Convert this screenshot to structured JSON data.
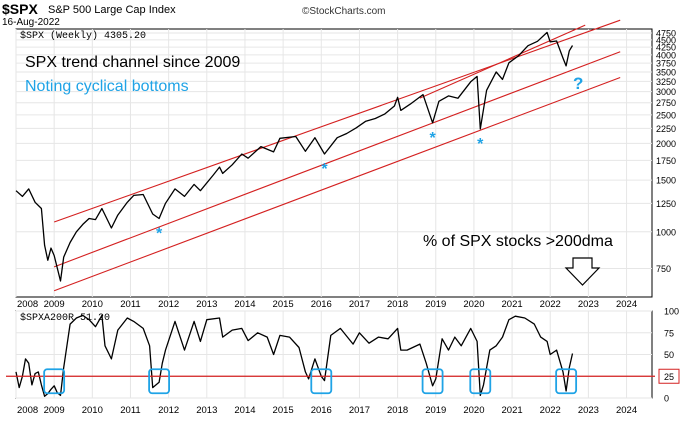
{
  "header": {
    "ticker": "$SPX",
    "name": "S&P 500 Large Cap Index",
    "date": "16-Aug-2022",
    "source": "©StockCharts.com"
  },
  "annotations": {
    "line1": "SPX trend channel since 2009",
    "line2": "Noting cyclical bottoms",
    "line3": "% of SPX stocks >200dma",
    "question_mark": "?",
    "asterisk": "*"
  },
  "colors": {
    "price_line": "#000000",
    "channel": "#d42020",
    "annotation_blue": "#1fa3e6",
    "grid": "#e6e6e6"
  },
  "chart_data": [
    {
      "type": "line",
      "legend": "$SPX (Weekly) 4305.20",
      "y_scale": "log",
      "ylim": [
        600,
        4900
      ],
      "y_ticks": [
        750,
        1000,
        1250,
        1500,
        1750,
        2000,
        2250,
        2500,
        2750,
        3000,
        3250,
        3500,
        3750,
        4000,
        4250,
        4500,
        4750
      ],
      "x_ticks": [
        "2008",
        "2009",
        "2010",
        "2011",
        "2012",
        "2013",
        "2014",
        "2015",
        "2016",
        "2017",
        "2018",
        "2019",
        "2020",
        "2021",
        "2022",
        "2023",
        "2024"
      ],
      "xlim": [
        "2008-01",
        "2024-09"
      ],
      "grid": true,
      "series": [
        {
          "last_value": 4305.2,
          "points": [
            [
              "2008-01",
              1380
            ],
            [
              "2008-03",
              1320
            ],
            [
              "2008-05",
              1400
            ],
            [
              "2008-07",
              1260
            ],
            [
              "2008-09",
              1200
            ],
            [
              "2008-10",
              900
            ],
            [
              "2008-11",
              800
            ],
            [
              "2008-12",
              880
            ],
            [
              "2009-01",
              830
            ],
            [
              "2009-03",
              680
            ],
            [
              "2009-04",
              820
            ],
            [
              "2009-06",
              920
            ],
            [
              "2009-08",
              1000
            ],
            [
              "2009-10",
              1060
            ],
            [
              "2009-12",
              1110
            ],
            [
              "2010-02",
              1100
            ],
            [
              "2010-04",
              1200
            ],
            [
              "2010-07",
              1030
            ],
            [
              "2010-09",
              1140
            ],
            [
              "2010-12",
              1260
            ],
            [
              "2011-02",
              1330
            ],
            [
              "2011-05",
              1340
            ],
            [
              "2011-08",
              1150
            ],
            [
              "2011-10",
              1110
            ],
            [
              "2011-12",
              1250
            ],
            [
              "2012-03",
              1400
            ],
            [
              "2012-06",
              1320
            ],
            [
              "2012-09",
              1450
            ],
            [
              "2012-11",
              1380
            ],
            [
              "2013-03",
              1560
            ],
            [
              "2013-05",
              1660
            ],
            [
              "2013-06",
              1580
            ],
            [
              "2013-09",
              1690
            ],
            [
              "2013-12",
              1840
            ],
            [
              "2014-02",
              1780
            ],
            [
              "2014-06",
              1950
            ],
            [
              "2014-10",
              1870
            ],
            [
              "2014-12",
              2080
            ],
            [
              "2015-05",
              2110
            ],
            [
              "2015-08",
              1880
            ],
            [
              "2015-11",
              2090
            ],
            [
              "2016-02",
              1840
            ],
            [
              "2016-06",
              2090
            ],
            [
              "2016-09",
              2160
            ],
            [
              "2016-12",
              2260
            ],
            [
              "2017-03",
              2380
            ],
            [
              "2017-06",
              2430
            ],
            [
              "2017-09",
              2520
            ],
            [
              "2017-12",
              2680
            ],
            [
              "2018-01",
              2870
            ],
            [
              "2018-02",
              2590
            ],
            [
              "2018-05",
              2720
            ],
            [
              "2018-09",
              2930
            ],
            [
              "2018-12",
              2350
            ],
            [
              "2019-02",
              2780
            ],
            [
              "2019-05",
              2900
            ],
            [
              "2019-08",
              2850
            ],
            [
              "2019-12",
              3240
            ],
            [
              "2020-02",
              3380
            ],
            [
              "2020-03",
              2240
            ],
            [
              "2020-05",
              3030
            ],
            [
              "2020-08",
              3500
            ],
            [
              "2020-10",
              3300
            ],
            [
              "2020-12",
              3760
            ],
            [
              "2021-03",
              3970
            ],
            [
              "2021-06",
              4300
            ],
            [
              "2021-09",
              4450
            ],
            [
              "2021-12",
              4770
            ],
            [
              "2022-01",
              4430
            ],
            [
              "2022-03",
              4460
            ],
            [
              "2022-05",
              3900
            ],
            [
              "2022-06",
              3670
            ],
            [
              "2022-07",
              4130
            ],
            [
              "2022-08",
              4305
            ]
          ]
        }
      ],
      "channel_lines": [
        {
          "name": "upper",
          "from": [
            "2009-01",
            1080
          ],
          "to": [
            "2023-11",
            5250
          ]
        },
        {
          "name": "middle",
          "from": [
            "2009-01",
            760
          ],
          "to": [
            "2023-11",
            4100
          ]
        },
        {
          "name": "lower",
          "from": [
            "2009-01",
            630
          ],
          "to": [
            "2023-11",
            3350
          ]
        },
        {
          "name": "short-upper",
          "from": [
            "2018-08",
            2850
          ],
          "to": [
            "2022-12",
            5050
          ]
        }
      ],
      "asterisk_dates": [
        "2011-10",
        "2016-02",
        "2018-12",
        "2020-03"
      ],
      "question_mark_date": "2022-09"
    },
    {
      "type": "line",
      "legend": "$SPXA200R 51.20",
      "ylim": [
        0,
        100
      ],
      "y_ticks": [
        0,
        25,
        50,
        75,
        100
      ],
      "x_ticks": [
        "2008",
        "2009",
        "2010",
        "2011",
        "2012",
        "2013",
        "2014",
        "2015",
        "2016",
        "2017",
        "2018",
        "2019",
        "2020",
        "2021",
        "2022",
        "2023",
        "2024"
      ],
      "xlim": [
        "2008-01",
        "2024-09"
      ],
      "reference_line": 25,
      "reference_label": "25",
      "grid": true,
      "series": [
        {
          "last_value": 51.2,
          "points": [
            [
              "2008-01",
              30
            ],
            [
              "2008-02",
              12
            ],
            [
              "2008-03",
              25
            ],
            [
              "2008-04",
              45
            ],
            [
              "2008-05",
              40
            ],
            [
              "2008-06",
              15
            ],
            [
              "2008-07",
              28
            ],
            [
              "2008-08",
              30
            ],
            [
              "2008-09",
              15
            ],
            [
              "2008-10",
              2
            ],
            [
              "2008-11",
              5
            ],
            [
              "2008-12",
              10
            ],
            [
              "2009-01",
              14
            ],
            [
              "2009-02",
              6
            ],
            [
              "2009-03",
              3
            ],
            [
              "2009-04",
              35
            ],
            [
              "2009-05",
              60
            ],
            [
              "2009-06",
              85
            ],
            [
              "2009-08",
              92
            ],
            [
              "2009-10",
              95
            ],
            [
              "2009-12",
              90
            ],
            [
              "2010-02",
              82
            ],
            [
              "2010-04",
              95
            ],
            [
              "2010-05",
              60
            ],
            [
              "2010-07",
              45
            ],
            [
              "2010-09",
              78
            ],
            [
              "2010-12",
              92
            ],
            [
              "2011-02",
              88
            ],
            [
              "2011-05",
              80
            ],
            [
              "2011-07",
              60
            ],
            [
              "2011-08",
              12
            ],
            [
              "2011-10",
              18
            ],
            [
              "2011-11",
              40
            ],
            [
              "2011-12",
              55
            ],
            [
              "2012-03",
              88
            ],
            [
              "2012-06",
              55
            ],
            [
              "2012-09",
              88
            ],
            [
              "2012-11",
              65
            ],
            [
              "2013-01",
              90
            ],
            [
              "2013-05",
              92
            ],
            [
              "2013-06",
              70
            ],
            [
              "2013-09",
              78
            ],
            [
              "2013-12",
              80
            ],
            [
              "2014-02",
              66
            ],
            [
              "2014-05",
              75
            ],
            [
              "2014-08",
              70
            ],
            [
              "2014-10",
              50
            ],
            [
              "2014-12",
              72
            ],
            [
              "2015-03",
              70
            ],
            [
              "2015-06",
              58
            ],
            [
              "2015-08",
              30
            ],
            [
              "2015-09",
              22
            ],
            [
              "2015-11",
              45
            ],
            [
              "2016-01",
              25
            ],
            [
              "2016-02",
              20
            ],
            [
              "2016-04",
              72
            ],
            [
              "2016-07",
              80
            ],
            [
              "2016-11",
              62
            ],
            [
              "2017-01",
              75
            ],
            [
              "2017-04",
              63
            ],
            [
              "2017-07",
              70
            ],
            [
              "2017-10",
              68
            ],
            [
              "2018-01",
              80
            ],
            [
              "2018-02",
              55
            ],
            [
              "2018-04",
              55
            ],
            [
              "2018-08",
              62
            ],
            [
              "2018-10",
              40
            ],
            [
              "2018-12",
              14
            ],
            [
              "2019-01",
              22
            ],
            [
              "2019-03",
              68
            ],
            [
              "2019-05",
              55
            ],
            [
              "2019-07",
              70
            ],
            [
              "2019-09",
              60
            ],
            [
              "2019-12",
              80
            ],
            [
              "2020-02",
              65
            ],
            [
              "2020-03",
              3
            ],
            [
              "2020-04",
              15
            ],
            [
              "2020-06",
              55
            ],
            [
              "2020-08",
              60
            ],
            [
              "2020-10",
              70
            ],
            [
              "2020-12",
              90
            ],
            [
              "2021-02",
              94
            ],
            [
              "2021-05",
              92
            ],
            [
              "2021-08",
              85
            ],
            [
              "2021-10",
              70
            ],
            [
              "2021-12",
              65
            ],
            [
              "2022-01",
              50
            ],
            [
              "2022-03",
              55
            ],
            [
              "2022-05",
              30
            ],
            [
              "2022-06",
              8
            ],
            [
              "2022-07",
              35
            ],
            [
              "2022-08",
              51.2
            ]
          ]
        }
      ],
      "highlighted_dates": [
        "2009-01",
        "2011-10",
        "2016-01",
        "2018-12",
        "2020-03",
        "2022-06"
      ]
    }
  ]
}
